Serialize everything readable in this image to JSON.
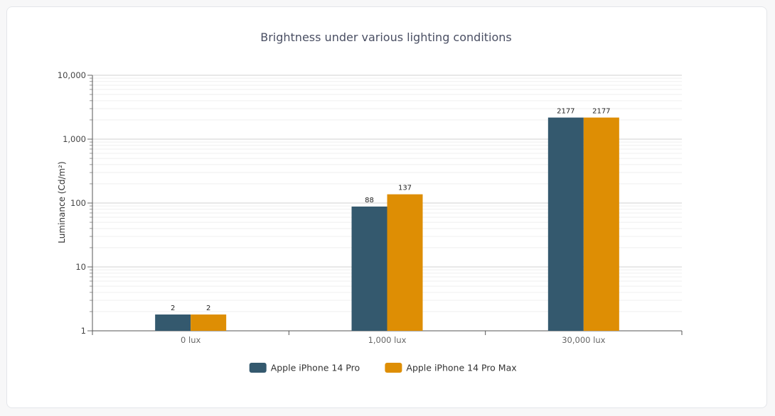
{
  "chart_data": {
    "type": "bar",
    "title": "Brightness under various lighting conditions",
    "ylabel": "Luminance (Cd/m²)",
    "xlabel": "",
    "yscale": "log",
    "ylim": [
      1,
      10000
    ],
    "yticks": [
      {
        "value": 1,
        "label": "1"
      },
      {
        "value": 10,
        "label": "10"
      },
      {
        "value": 100,
        "label": "100"
      },
      {
        "value": 1000,
        "label": "1,000"
      },
      {
        "value": 10000,
        "label": "10,000"
      }
    ],
    "categories": [
      "0 lux",
      "1,000 lux",
      "30,000 lux"
    ],
    "series": [
      {
        "name": "Apple iPhone 14 Pro",
        "color": "#34596e",
        "values": [
          1.8,
          88,
          2177
        ],
        "labels": [
          "2",
          "88",
          "2177"
        ]
      },
      {
        "name": "Apple iPhone 14 Pro Max",
        "color": "#de8e04",
        "values": [
          1.8,
          137,
          2177
        ],
        "labels": [
          "2",
          "137",
          "2177"
        ]
      }
    ],
    "grid": true,
    "legend": "bottom-center"
  }
}
